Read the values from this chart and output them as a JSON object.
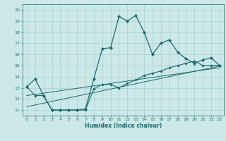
{
  "xlabel": "Humidex (Indice chaleur)",
  "xlim": [
    -0.5,
    23.5
  ],
  "ylim": [
    10.5,
    20.5
  ],
  "xticks": [
    0,
    1,
    2,
    3,
    4,
    5,
    6,
    7,
    8,
    9,
    10,
    11,
    12,
    13,
    14,
    15,
    16,
    17,
    18,
    19,
    20,
    21,
    22,
    23
  ],
  "yticks": [
    11,
    12,
    13,
    14,
    15,
    16,
    17,
    18,
    19,
    20
  ],
  "background_color": "#cce8e8",
  "grid_color": "#a8d0d0",
  "line_color": "#1a6b6b",
  "line1_x": [
    0,
    1,
    2,
    3,
    4,
    5,
    6,
    7,
    8,
    9,
    10,
    11,
    12,
    13,
    14,
    15,
    16,
    17,
    18,
    19,
    20,
    21,
    22,
    23
  ],
  "line1_y": [
    13.1,
    13.8,
    12.3,
    11.0,
    11.0,
    11.0,
    11.0,
    11.1,
    13.8,
    16.5,
    16.6,
    19.4,
    19.0,
    19.5,
    18.0,
    16.0,
    17.0,
    17.3,
    16.2,
    15.6,
    15.2,
    15.5,
    15.7,
    15.0
  ],
  "line2_x": [
    0,
    1,
    2,
    3,
    4,
    5,
    6,
    7,
    8,
    9,
    10,
    11,
    12,
    13,
    14,
    15,
    16,
    17,
    18,
    19,
    20,
    21,
    22,
    23
  ],
  "line2_y": [
    13.1,
    12.3,
    12.3,
    11.0,
    11.0,
    11.0,
    11.0,
    11.0,
    12.9,
    13.3,
    13.3,
    13.0,
    13.4,
    13.7,
    14.1,
    14.3,
    14.5,
    14.8,
    15.0,
    15.2,
    15.4,
    15.0,
    15.0,
    15.0
  ],
  "line3_x": [
    0,
    23
  ],
  "line3_y": [
    11.3,
    14.95
  ],
  "line4_x": [
    0,
    23
  ],
  "line4_y": [
    12.3,
    14.8
  ]
}
